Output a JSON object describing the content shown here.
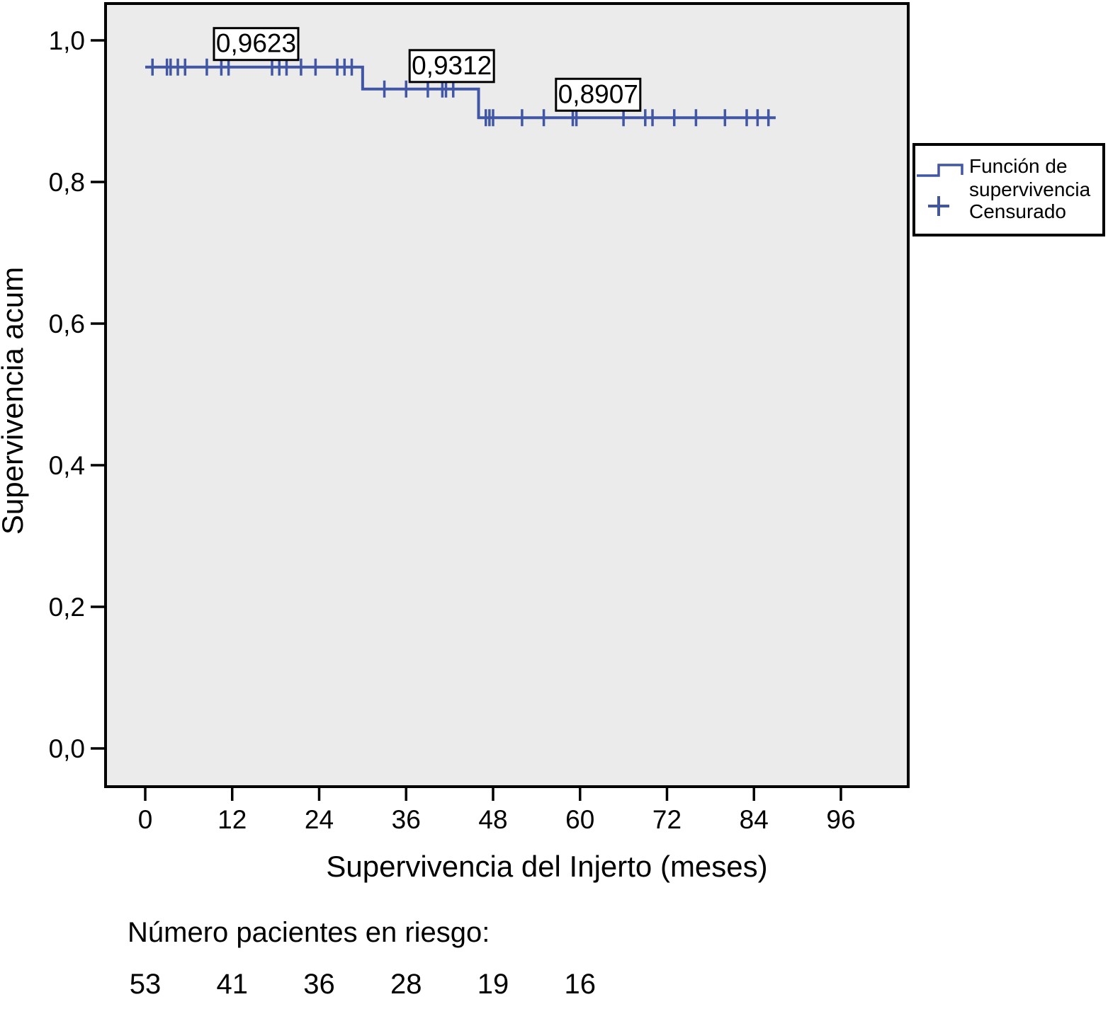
{
  "chart_data": {
    "type": "line",
    "chart_kind": "kaplan_meier_step_function",
    "title": "",
    "xlabel": "Supervivencia del Injerto (meses)",
    "ylabel": "Supervivencia acum",
    "xlim": [
      0,
      105
    ],
    "ylim": [
      -0.05,
      1.05
    ],
    "grid": "off",
    "x_tick_values": [
      0,
      12,
      24,
      36,
      48,
      60,
      72,
      84,
      96
    ],
    "x_tick_labels": [
      "0",
      "12",
      "24",
      "36",
      "48",
      "60",
      "72",
      "84",
      "96"
    ],
    "y_tick_values": [
      1.0,
      0.8,
      0.6,
      0.4,
      0.2,
      0.0
    ],
    "y_tick_labels": [
      "1,0",
      "0,8",
      "0,6",
      "0,4",
      "0,2",
      "0,0"
    ],
    "series": [
      {
        "name": "Función de supervivencia",
        "steps": [
          {
            "t_start": 0,
            "t_end": 30,
            "survival": 0.9623
          },
          {
            "t_start": 30,
            "t_end": 46,
            "survival": 0.9312
          },
          {
            "t_start": 46,
            "t_end": 87,
            "survival": 0.8907
          }
        ]
      }
    ],
    "censored": [
      {
        "t": 1,
        "s": 0.9623
      },
      {
        "t": 3,
        "s": 0.9623
      },
      {
        "t": 3.5,
        "s": 0.9623
      },
      {
        "t": 4.5,
        "s": 0.9623
      },
      {
        "t": 5.5,
        "s": 0.9623
      },
      {
        "t": 8.5,
        "s": 0.9623
      },
      {
        "t": 10.5,
        "s": 0.9623
      },
      {
        "t": 11.5,
        "s": 0.9623
      },
      {
        "t": 17.5,
        "s": 0.9623
      },
      {
        "t": 18.5,
        "s": 0.9623
      },
      {
        "t": 19.5,
        "s": 0.9623
      },
      {
        "t": 21.5,
        "s": 0.9623
      },
      {
        "t": 23.5,
        "s": 0.9623
      },
      {
        "t": 26.5,
        "s": 0.9623
      },
      {
        "t": 27.5,
        "s": 0.9623
      },
      {
        "t": 28.5,
        "s": 0.9623
      },
      {
        "t": 33,
        "s": 0.9312
      },
      {
        "t": 36,
        "s": 0.9312
      },
      {
        "t": 39,
        "s": 0.9312
      },
      {
        "t": 41,
        "s": 0.9312
      },
      {
        "t": 41.5,
        "s": 0.9312
      },
      {
        "t": 42.5,
        "s": 0.9312
      },
      {
        "t": 47,
        "s": 0.8907
      },
      {
        "t": 47.5,
        "s": 0.8907
      },
      {
        "t": 48,
        "s": 0.8907
      },
      {
        "t": 52,
        "s": 0.8907
      },
      {
        "t": 55,
        "s": 0.8907
      },
      {
        "t": 59,
        "s": 0.8907
      },
      {
        "t": 59.5,
        "s": 0.8907
      },
      {
        "t": 66,
        "s": 0.8907
      },
      {
        "t": 69,
        "s": 0.8907
      },
      {
        "t": 70,
        "s": 0.8907
      },
      {
        "t": 73,
        "s": 0.8907
      },
      {
        "t": 76,
        "s": 0.8907
      },
      {
        "t": 80,
        "s": 0.8907
      },
      {
        "t": 83,
        "s": 0.8907
      },
      {
        "t": 84.5,
        "s": 0.8907
      },
      {
        "t": 86,
        "s": 0.8907
      }
    ],
    "annotations": [
      {
        "label": "0,9623",
        "survival": 0.9623,
        "month": 15.3
      },
      {
        "label": "0,9312",
        "survival": 0.9312,
        "month": 42.3
      },
      {
        "label": "0,8907",
        "survival": 0.8907,
        "month": 62.5
      }
    ],
    "legend": {
      "position": "right",
      "entries": [
        {
          "symbol": "step-line",
          "label": "Función de supervivencia",
          "lines": [
            "Función de",
            "supervivencia"
          ]
        },
        {
          "symbol": "plus",
          "label": "Censurado",
          "lines": [
            "Censurado"
          ]
        }
      ]
    },
    "risk_table": {
      "heading": "Número pacientes en riesgo:",
      "times": [
        0,
        12,
        24,
        36,
        48,
        60
      ],
      "counts": [
        "53",
        "41",
        "36",
        "28",
        "19",
        "16"
      ]
    },
    "colors": {
      "curve": "#4156a4",
      "plot_background": "#ebebeb",
      "frame": "#000000",
      "text": "#000000",
      "annotation_background": "#ffffff"
    }
  }
}
